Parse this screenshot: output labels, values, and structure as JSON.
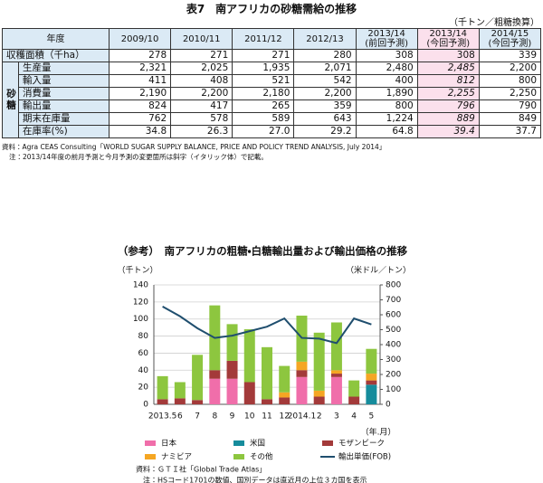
{
  "title": "表7　南アフリカの砂糖需給の推移",
  "unit": "（千トン／粗糖換算）",
  "table": {
    "header": [
      [
        "年度"
      ],
      [
        "2009/10"
      ],
      [
        "2010/11"
      ],
      [
        "2011/12"
      ],
      [
        "2012/13"
      ],
      [
        "2013/14",
        "(前回予測)"
      ],
      [
        "2013/14",
        "(今回予測)"
      ],
      [
        "2014/15",
        "(今回予測)"
      ]
    ],
    "group": {
      "label": "砂糖",
      "first_row": 1,
      "last_row": 6
    },
    "rows": [
      {
        "label": "収穫面積（千ha）",
        "values": [
          "278",
          "271",
          "271",
          "280",
          "308",
          "308",
          "339"
        ]
      },
      {
        "label": "生産量",
        "values": [
          "2,321",
          "2,025",
          "1,935",
          "2,071",
          "2,480",
          "2,485",
          "2,200"
        ]
      },
      {
        "label": "輸入量",
        "values": [
          "411",
          "408",
          "521",
          "542",
          "400",
          "812",
          "800"
        ]
      },
      {
        "label": "消費量",
        "values": [
          "2,190",
          "2,200",
          "2,180",
          "2,200",
          "1,890",
          "2,255",
          "2,250"
        ]
      },
      {
        "label": "輸出量",
        "values": [
          "824",
          "417",
          "265",
          "359",
          "800",
          "796",
          "790"
        ]
      },
      {
        "label": "期末在庫量",
        "values": [
          "762",
          "578",
          "589",
          "643",
          "1,224",
          "889",
          "849"
        ]
      },
      {
        "label": "在庫率(%)",
        "values": [
          "34.8",
          "26.3",
          "27.0",
          "29.2",
          "64.8",
          "39.4",
          "37.7"
        ]
      }
    ],
    "highlight_column": 5,
    "italic_cells": [
      [
        1,
        5
      ],
      [
        2,
        5
      ],
      [
        3,
        5
      ],
      [
        4,
        5
      ],
      [
        5,
        5
      ],
      [
        6,
        5
      ]
    ]
  },
  "notes": [
    "資料：Agra CEAS Consulting「WORLD SUGAR SUPPLY BALANCE, PRICE AND POLICY TREND ANALYSIS, July 2014」",
    "注：2013/14年度の前月予測と今月予測の変更箇所は斜字（イタリック体）で記載。"
  ],
  "chart_data": {
    "type": "bar",
    "title": "（参考）　南アフリカの粗糖・白糖輸出量および輸出価格の推移",
    "y_label": "（千トン）",
    "y2_label": "（米ドル／トン）",
    "x_label": "（年.月）",
    "categories": [
      "2013.5",
      "6",
      "7",
      "8",
      "9",
      "10",
      "11",
      "12",
      "2014.1",
      "2",
      "3",
      "4",
      "5"
    ],
    "series": [
      {
        "name": "日本",
        "color": "#f06eaa",
        "values": [
          0,
          0,
          0,
          30,
          30,
          0,
          0,
          0,
          32,
          0,
          32,
          0,
          0
        ]
      },
      {
        "name": "米国",
        "color": "#168c9c",
        "values": [
          0,
          0,
          0,
          0,
          0,
          0,
          0,
          0,
          0,
          0,
          0,
          0,
          23
        ]
      },
      {
        "name": "モザンビーク",
        "color": "#a33a3a",
        "values": [
          6,
          7,
          5,
          10,
          21,
          26,
          6,
          8,
          8,
          9,
          4,
          9,
          5
        ]
      },
      {
        "name": "ナミビア",
        "color": "#f5a623",
        "values": [
          0,
          0,
          0,
          0,
          0,
          0,
          0,
          6,
          10,
          7,
          4,
          0,
          8
        ]
      },
      {
        "name": "その他",
        "color": "#8dc63f",
        "values": [
          27,
          19,
          53,
          76,
          43,
          62,
          61,
          31,
          54,
          68,
          56,
          19,
          29
        ]
      },
      {
        "name": "輸出単価(FOB)",
        "color": "#1f4e6e",
        "type": "line",
        "axis": "y2",
        "values": [
          655,
          590,
          510,
          445,
          460,
          490,
          520,
          575,
          445,
          440,
          410,
          575,
          535
        ]
      }
    ],
    "ylim": [
      0,
      140
    ],
    "yticks": [
      0,
      20,
      40,
      60,
      80,
      100,
      120,
      140
    ],
    "y2lim": [
      0,
      800
    ],
    "y2ticks": [
      0,
      100,
      200,
      300,
      400,
      500,
      600,
      700,
      800
    ],
    "grid": true,
    "notes": [
      "資料：ＧＴＩ社「Global Trade Atlas」",
      "注：HSコード1701の数値、国別データは直近月の上位３カ国を表示"
    ]
  }
}
